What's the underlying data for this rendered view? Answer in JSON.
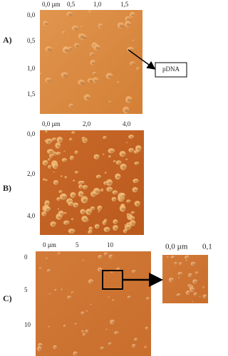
{
  "panels": [
    {
      "label": "A)",
      "top_ticks": [
        "0,0 µm",
        "0,5",
        "1,0",
        "1,5"
      ],
      "left_ticks": [
        "0,0",
        "0,5",
        "1,0",
        "1,5"
      ],
      "annotation": "pDNA"
    },
    {
      "label": "B)",
      "top_ticks": [
        "0,0 µm",
        "2,0",
        "4,0"
      ],
      "left_ticks": [
        "0,0",
        "2,0",
        "4,0"
      ]
    },
    {
      "label": "C)",
      "top_ticks": [
        "0 µm",
        "5",
        "10"
      ],
      "left_ticks": [
        "0",
        "5",
        "10"
      ],
      "inset_ticks": [
        "0,0 µm",
        "0,1"
      ]
    }
  ]
}
